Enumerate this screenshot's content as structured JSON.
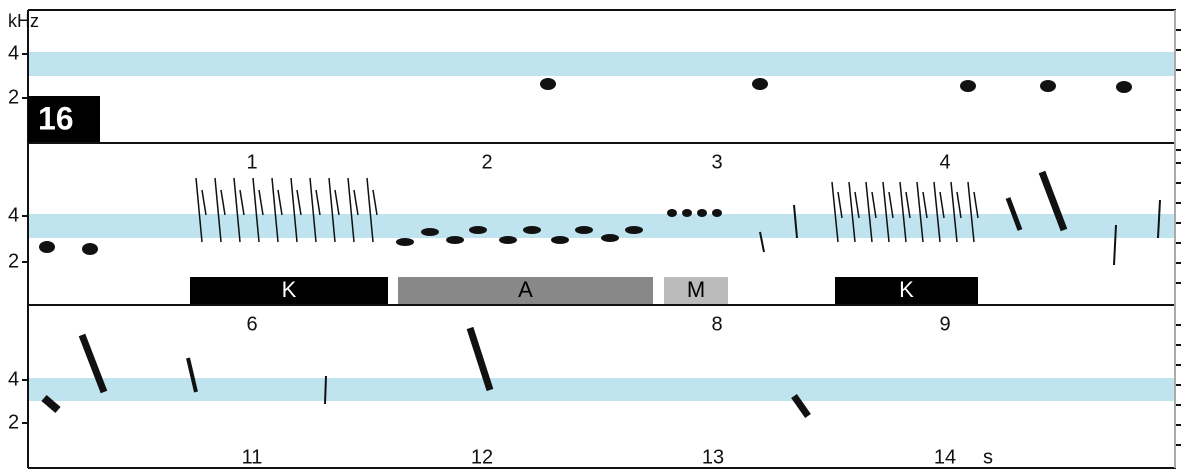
{
  "y_unit": "kHz",
  "badge": "16",
  "time_unit": "s",
  "panels": [
    {
      "y_labels": [
        "4",
        "2"
      ],
      "time_labels": [
        "1",
        "2",
        "3",
        "4"
      ]
    },
    {
      "y_labels": [
        "4",
        "2"
      ],
      "time_labels": [
        "6",
        "8",
        "9"
      ],
      "segments": [
        "K",
        "A",
        "M",
        "K"
      ]
    },
    {
      "y_labels": [
        "4",
        "2"
      ],
      "time_labels": [
        "11",
        "12",
        "13",
        "14"
      ]
    }
  ]
}
